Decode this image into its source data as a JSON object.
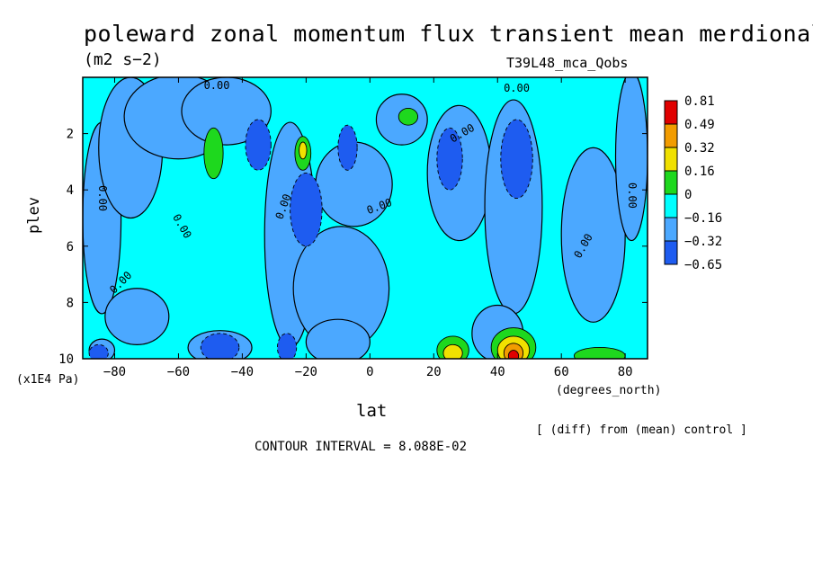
{
  "chart_data": {
    "type": "heatmap",
    "title": "poleward zonal momentum flux transient mean merdional",
    "units": "(m2 s−2)",
    "run_label": "T39L48_mca_Qobs",
    "xlabel": "lat",
    "x_units": "(degrees_north)",
    "ylabel": "plev",
    "y_units": "(x1E4 Pa)",
    "diff_note": "[ (diff) from (mean) control ]",
    "contour_interval": "CONTOUR INTERVAL = 8.088E-02",
    "xlim": [
      -90,
      87
    ],
    "ylim": [
      0,
      10
    ],
    "y_inverted": true,
    "x_ticks": [
      "−80",
      "−60",
      "−40",
      "−20",
      "0",
      "20",
      "40",
      "60",
      "80"
    ],
    "x_tick_values": [
      -80,
      -60,
      -40,
      -20,
      0,
      20,
      40,
      60,
      80
    ],
    "y_ticks": [
      "2",
      "4",
      "6",
      "8",
      "10"
    ],
    "y_tick_values": [
      2,
      4,
      6,
      8,
      10
    ],
    "colorbar": {
      "labels": [
        "0.81",
        "0.49",
        "0.32",
        "0.16",
        "0",
        "−0.16",
        "−0.32",
        "−0.65"
      ],
      "colors": [
        "#e00000",
        "#f29c00",
        "#f0e000",
        "#1ed81e",
        "#00ffff",
        "#4ba8ff",
        "#1e5cf0"
      ]
    },
    "contour_labels": [
      {
        "text": "0.00",
        "lat": -48,
        "plev": 0.3,
        "rot": 0
      },
      {
        "text": "0.00",
        "lat": 46,
        "plev": 0.4,
        "rot": 0
      },
      {
        "text": "0.00",
        "lat": 29,
        "plev": 2.0,
        "rot": -30
      },
      {
        "text": "0.00",
        "lat": -84,
        "plev": 4.3,
        "rot": 90
      },
      {
        "text": "0.00",
        "lat": -59,
        "plev": 5.3,
        "rot": 60
      },
      {
        "text": "0.00",
        "lat": -27,
        "plev": 4.6,
        "rot": -70
      },
      {
        "text": "0.00",
        "lat": 3,
        "plev": 4.6,
        "rot": -20
      },
      {
        "text": "0.00",
        "lat": 67,
        "plev": 6.0,
        "rot": -60
      },
      {
        "text": "0.00",
        "lat": -78,
        "plev": 7.3,
        "rot": -45
      },
      {
        "text": "0.00",
        "lat": 82,
        "plev": 4.2,
        "rot": 90
      }
    ],
    "features": [
      {
        "level": 0,
        "lat": -84,
        "plev": 5.0,
        "rx": 6,
        "ry": 3.4
      },
      {
        "level": 0,
        "lat": -75,
        "plev": 2.5,
        "rx": 10,
        "ry": 2.5
      },
      {
        "level": 0,
        "lat": -60,
        "plev": 1.4,
        "rx": 17,
        "ry": 1.5
      },
      {
        "level": 0,
        "lat": -45,
        "plev": 1.2,
        "rx": 14,
        "ry": 1.2
      },
      {
        "level": 0,
        "lat": -73,
        "plev": 8.5,
        "rx": 10,
        "ry": 1.0
      },
      {
        "level": 0,
        "lat": -25,
        "plev": 5.6,
        "rx": 8,
        "ry": 4.0
      },
      {
        "level": 0,
        "lat": -9,
        "plev": 7.5,
        "rx": 15,
        "ry": 2.2
      },
      {
        "level": 0,
        "lat": -5,
        "plev": 3.8,
        "rx": 12,
        "ry": 1.5
      },
      {
        "level": 0,
        "lat": 10,
        "plev": 1.5,
        "rx": 8,
        "ry": 0.9
      },
      {
        "level": 0,
        "lat": 28,
        "plev": 3.4,
        "rx": 10,
        "ry": 2.4
      },
      {
        "level": 0,
        "lat": 45,
        "plev": 4.6,
        "rx": 9,
        "ry": 3.8
      },
      {
        "level": 0,
        "lat": 70,
        "plev": 5.6,
        "rx": 10,
        "ry": 3.1
      },
      {
        "level": 0,
        "lat": 82,
        "plev": 2.8,
        "rx": 5,
        "ry": 3.0
      },
      {
        "level": 0,
        "lat": 40,
        "plev": 9.1,
        "rx": 8,
        "ry": 1.0
      },
      {
        "level": 0,
        "lat": -10,
        "plev": 9.4,
        "rx": 10,
        "ry": 0.8
      },
      {
        "level": 0,
        "lat": -47,
        "plev": 9.6,
        "rx": 10,
        "ry": 0.6
      },
      {
        "level": 0,
        "lat": -84,
        "plev": 9.7,
        "rx": 4,
        "ry": 0.4
      },
      {
        "level": -1,
        "lat": -35,
        "plev": 2.4,
        "rx": 4,
        "ry": 0.9
      },
      {
        "level": -1,
        "lat": -20,
        "plev": 4.7,
        "rx": 5,
        "ry": 1.3
      },
      {
        "level": -1,
        "lat": -7,
        "plev": 2.5,
        "rx": 3,
        "ry": 0.8
      },
      {
        "level": -1,
        "lat": 25,
        "plev": 2.9,
        "rx": 4,
        "ry": 1.1
      },
      {
        "level": -1,
        "lat": 46,
        "plev": 2.9,
        "rx": 5,
        "ry": 1.4
      },
      {
        "level": -1,
        "lat": -47,
        "plev": 9.6,
        "rx": 6,
        "ry": 0.5
      },
      {
        "level": -1,
        "lat": -26,
        "plev": 9.6,
        "rx": 3,
        "ry": 0.5
      },
      {
        "level": -1,
        "lat": -85,
        "plev": 9.8,
        "rx": 3,
        "ry": 0.3
      },
      {
        "level": 1,
        "lat": -49,
        "plev": 2.7,
        "rx": 3,
        "ry": 0.9
      },
      {
        "level": 1,
        "lat": -21,
        "plev": 2.7,
        "rx": 2.5,
        "ry": 0.6
      },
      {
        "level": 1,
        "lat": 12,
        "plev": 1.4,
        "rx": 3,
        "ry": 0.3
      },
      {
        "level": 1,
        "lat": 26,
        "plev": 9.7,
        "rx": 5,
        "ry": 0.5
      },
      {
        "level": 1,
        "lat": 45,
        "plev": 9.6,
        "rx": 7,
        "ry": 0.7
      },
      {
        "level": 1,
        "lat": 72,
        "plev": 9.9,
        "rx": 8,
        "ry": 0.3
      },
      {
        "level": 2,
        "lat": 26,
        "plev": 9.8,
        "rx": 3,
        "ry": 0.3
      },
      {
        "level": 2,
        "lat": 45,
        "plev": 9.7,
        "rx": 5,
        "ry": 0.5
      },
      {
        "level": 2,
        "lat": -21,
        "plev": 2.6,
        "rx": 1.2,
        "ry": 0.3
      },
      {
        "level": 3,
        "lat": 45,
        "plev": 9.8,
        "rx": 3,
        "ry": 0.35
      },
      {
        "level": 4,
        "lat": 45,
        "plev": 9.9,
        "rx": 1.6,
        "ry": 0.2
      }
    ]
  }
}
